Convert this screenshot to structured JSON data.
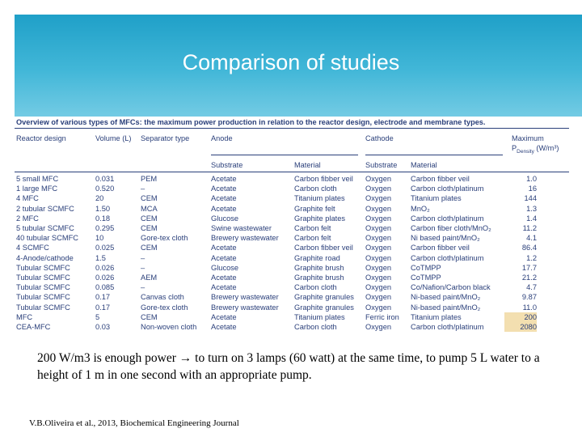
{
  "slide": {
    "title": "Comparison of studies",
    "summary": "200 W/m3 is enough power → to turn on 3 lamps (60 watt) at the same time, to pump 5 L water to a height of 1 m in one second with an appropriate pump.",
    "reference": "V.B.Oliveira et al., 2013, Biochemical Engineering Journal"
  },
  "colors": {
    "banner": "#2aa8d0",
    "table_text": "#2a3f7a",
    "highlight": "#f3dfb0"
  },
  "table": {
    "caption": "Overview of various types of MFCs: the maximum power production in relation to the reactor design, electrode and membrane types.",
    "headers": {
      "reactor_design": "Reactor design",
      "volume": "Volume (L)",
      "separator": "Separator type",
      "anode": "Anode",
      "cathode": "Cathode",
      "max_power": "Maximum",
      "max_power_sub_main": "P",
      "max_power_sub": "Density",
      "max_power_unit": "(W/m³)",
      "substrate": "Substrate",
      "material": "Material",
      "cathode_substrate": "Substrate",
      "cathode_material": "Material"
    },
    "rows": [
      [
        "5 small MFC",
        "0.031",
        "PEM",
        "Acetate",
        "Carbon fibber veil",
        "Oxygen",
        "Carbon fibber veil",
        "1.0"
      ],
      [
        "1 large MFC",
        "0.520",
        "–",
        "Acetate",
        "Carbon cloth",
        "Oxygen",
        "Carbon cloth/platinum",
        "16"
      ],
      [
        "4 MFC",
        "20",
        "CEM",
        "Acetate",
        "Titanium plates",
        "Oxygen",
        "Titanium plates",
        "144"
      ],
      [
        "2 tubular SCMFC",
        "1.50",
        "MCA",
        "Acetate",
        "Graphite felt",
        "Oxygen",
        "MnO₂",
        "1.3"
      ],
      [
        "2 MFC",
        "0.18",
        "CEM",
        "Glucose",
        "Graphite plates",
        "Oxygen",
        "Carbon cloth/platinum",
        "1.4"
      ],
      [
        "5 tubular SCMFC",
        "0.295",
        "CEM",
        "Swine wastewater",
        "Carbon felt",
        "Oxygen",
        "Carbon fiber cloth/MnO₂",
        "11.2"
      ],
      [
        "40 tubular SCMFC",
        "10",
        "Gore-tex cloth",
        "Brewery wastewater",
        "Carbon felt",
        "Oxygen",
        "Ni based paint/MnO₂",
        "4.1"
      ],
      [
        "4 SCMFC",
        "0.025",
        "CEM",
        "Acetate",
        "Carbon fibber veil",
        "Oxygen",
        "Carbon fibber veil",
        "86.4"
      ],
      [
        "4-Anode/cathode",
        "1.5",
        "–",
        "Acetate",
        "Graphite road",
        "Oxygen",
        "Carbon cloth/platinum",
        "1.2"
      ],
      [
        "Tubular SCMFC",
        "0.026",
        "–",
        "Glucose",
        "Graphite brush",
        "Oxygen",
        "CoTMPP",
        "17.7"
      ],
      [
        "Tubular SCMFC",
        "0.026",
        "AEM",
        "Acetate",
        "Graphite brush",
        "Oxygen",
        "CoTMPP",
        "21.2"
      ],
      [
        "Tubular SCMFC",
        "0.085",
        "–",
        "Acetate",
        "Carbon cloth",
        "Oxygen",
        "Co/Nafion/Carbon black",
        "4.7"
      ],
      [
        "Tubular SCMFC",
        "0.17",
        "Canvas cloth",
        "Brewery wastewater",
        "Graphite granules",
        "Oxygen",
        "Ni-based paint/MnO₂",
        "9.87"
      ],
      [
        "Tubular SCMFC",
        "0.17",
        "Gore-tex cloth",
        "Brewery wastewater",
        "Graphite granules",
        "Oxygen",
        "Ni-based paint/MnO₂",
        "11.0"
      ],
      [
        "MFC",
        "5",
        "CEM",
        "Acetate",
        "Titanium plates",
        "Ferric iron",
        "Titanium plates",
        "200"
      ],
      [
        "CEA-MFC",
        "0.03",
        "Non-woven cloth",
        "Acetate",
        "Carbon cloth",
        "Oxygen",
        "Carbon cloth/platinum",
        "2080"
      ]
    ],
    "highlighted_values": [
      "200",
      "2080"
    ]
  }
}
